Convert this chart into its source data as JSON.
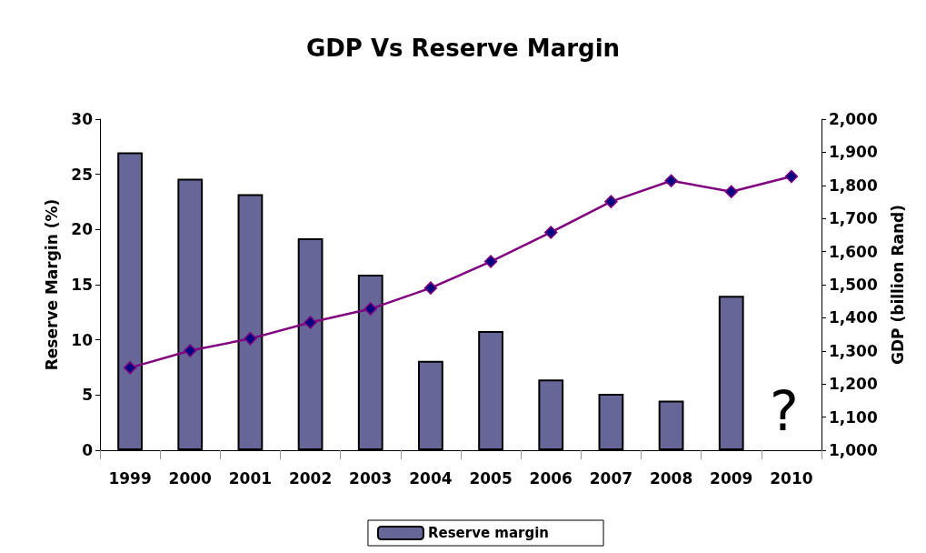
{
  "chart_data": {
    "type": "bar",
    "title": "GDP Vs Reserve Margin",
    "ylabel": "Reserve Margin (%)",
    "y2label": "GDP (billion Rand)",
    "categories": [
      "1999",
      "2000",
      "2001",
      "2002",
      "2003",
      "2004",
      "2005",
      "2006",
      "2007",
      "2008",
      "2009",
      "2010"
    ],
    "series": [
      {
        "name": "Reserve margin",
        "color": "#666699",
        "values": [
          27.0,
          24.6,
          23.2,
          19.2,
          15.9,
          8.1,
          10.8,
          6.4,
          5.1,
          4.5,
          14.0,
          null
        ]
      },
      {
        "type": "line",
        "axis": "y2",
        "color": "#800080",
        "marker": "diamond",
        "values": [
          1249,
          1301,
          1337,
          1386,
          1427,
          1490,
          1570,
          1658,
          1751,
          1814,
          1781,
          1827
        ]
      }
    ],
    "ylim": [
      0,
      30
    ],
    "yticks": [
      0,
      5,
      10,
      15,
      20,
      25,
      30
    ],
    "y2lim": [
      1000,
      2000
    ],
    "y2ticks": [
      {
        "value": 1000,
        "label": "1,000"
      },
      {
        "value": 1100,
        "label": "1,100"
      },
      {
        "value": 1200,
        "label": "1,200"
      },
      {
        "value": 1300,
        "label": "1,300"
      },
      {
        "value": 1400,
        "label": "1,400"
      },
      {
        "value": 1500,
        "label": "1,500"
      },
      {
        "value": 1600,
        "label": "1,600"
      },
      {
        "value": 1700,
        "label": "1,700"
      },
      {
        "value": 1800,
        "label": "1,800"
      },
      {
        "value": 1900,
        "label": "1,900"
      },
      {
        "value": 2000,
        "label": "2,000"
      }
    ],
    "annotations": [
      "?"
    ],
    "legend": "bottom",
    "grid": false
  }
}
